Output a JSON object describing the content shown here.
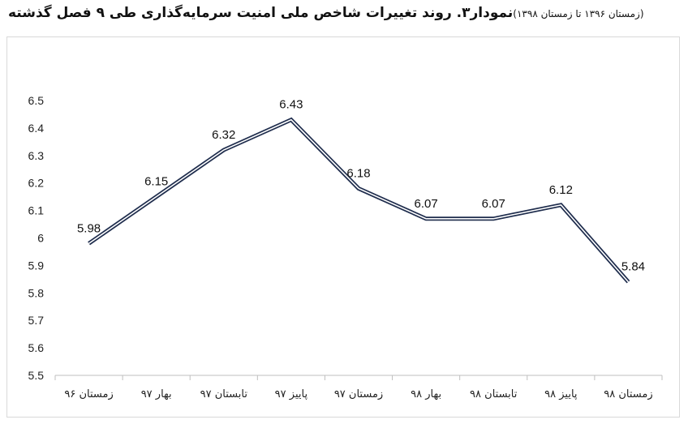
{
  "title": {
    "main": "نمودار۳. روند تغییرات شاخص ملی امنیت سرمایه‌گذاری طی ۹ فصل گذشته",
    "sub": "(زمستان ۱۳۹۶ تا زمستان ۱۳۹۸)"
  },
  "chart_data": {
    "type": "line",
    "title": "نمودار۳. روند تغییرات شاخص ملی امنیت سرمایه‌گذاری طی ۹ فصل گذشته",
    "subtitle": "(زمستان ۱۳۹۶ تا زمستان ۱۳۹۸)",
    "categories": [
      "زمستان ۹۶",
      "بهار ۹۷",
      "تابستان ۹۷",
      "پاییز ۹۷",
      "زمستان ۹۷",
      "بهار ۹۸",
      "تابستان ۹۸",
      "پاییز ۹۸",
      "زمستان ۹۸"
    ],
    "values": [
      5.98,
      6.15,
      6.32,
      6.43,
      6.18,
      6.07,
      6.07,
      6.12,
      5.84
    ],
    "data_labels": [
      "5.98",
      "6.15",
      "6.32",
      "6.43",
      "6.18",
      "6.07",
      "6.07",
      "6.12",
      "5.84"
    ],
    "y_ticks": [
      "5.5",
      "5.6",
      "5.7",
      "5.8",
      "5.9",
      "6",
      "6.1",
      "6.2",
      "6.3",
      "6.4",
      "6.5"
    ],
    "ylim": [
      5.5,
      6.5
    ],
    "xlabel": "",
    "ylabel": "",
    "grid": false,
    "line_color": "#1f2d4d"
  }
}
